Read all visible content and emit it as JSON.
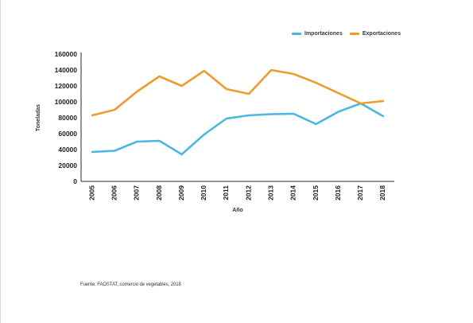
{
  "chart_data": {
    "type": "line",
    "categories": [
      "2005",
      "2006",
      "2007",
      "2008",
      "2009",
      "2010",
      "2011",
      "2012",
      "2013",
      "2014",
      "2015",
      "2016",
      "2017",
      "2018"
    ],
    "series": [
      {
        "name": "Importaciones",
        "color": "#4ab7e3",
        "values": [
          37000,
          38500,
          50000,
          51000,
          34000,
          59000,
          79000,
          83000,
          84500,
          85000,
          72000,
          87500,
          98000,
          82000
        ]
      },
      {
        "name": "Exportaciones",
        "color": "#ef9a2e",
        "values": [
          83000,
          90000,
          113000,
          132000,
          120000,
          139000,
          116000,
          110000,
          140000,
          135000,
          124000,
          111000,
          98000,
          101000
        ]
      }
    ],
    "xlabel": "Año",
    "ylabel": "Toneladas",
    "ylim": [
      0,
      160000
    ],
    "yticks": [
      "0",
      "20000",
      "40000",
      "60000",
      "80000",
      "100000",
      "120000",
      "140000",
      "160000"
    ],
    "grid": false,
    "legend_position": "top-right"
  },
  "source": "Fuente: FAOSTAT, comercio de vegetables, 2018"
}
